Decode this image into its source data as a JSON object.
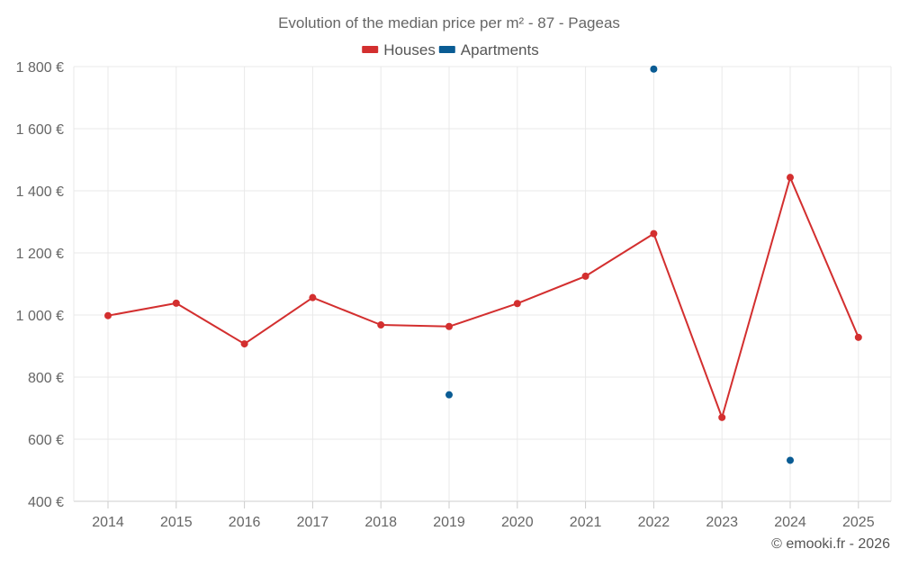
{
  "chart_data": {
    "type": "line",
    "title": "Evolution of the median price per m² - 87 - Pageas",
    "categories": [
      "2014",
      "2015",
      "2016",
      "2017",
      "2018",
      "2019",
      "2020",
      "2021",
      "2022",
      "2023",
      "2024",
      "2025"
    ],
    "ylim": [
      400,
      1800
    ],
    "yticks": [
      400,
      600,
      800,
      1000,
      1200,
      1400,
      1600,
      1800
    ],
    "ytick_labels": [
      "400 €",
      "600 €",
      "800 €",
      "1 000 €",
      "1 200 €",
      "1 400 €",
      "1 600 €",
      "1 800 €"
    ],
    "grid": true,
    "legend_position": "top-center",
    "series": [
      {
        "name": "Houses",
        "color": "#d32f2f",
        "values": [
          998,
          1038,
          907,
          1056,
          968,
          963,
          1037,
          1125,
          1262,
          670,
          1443,
          928
        ]
      },
      {
        "name": "Apartments",
        "color": "#0a5c94",
        "values": [
          null,
          null,
          null,
          null,
          null,
          743,
          null,
          null,
          1792,
          null,
          532,
          null
        ]
      }
    ]
  },
  "footer": {
    "copyright": "© emooki.fr - 2026"
  }
}
